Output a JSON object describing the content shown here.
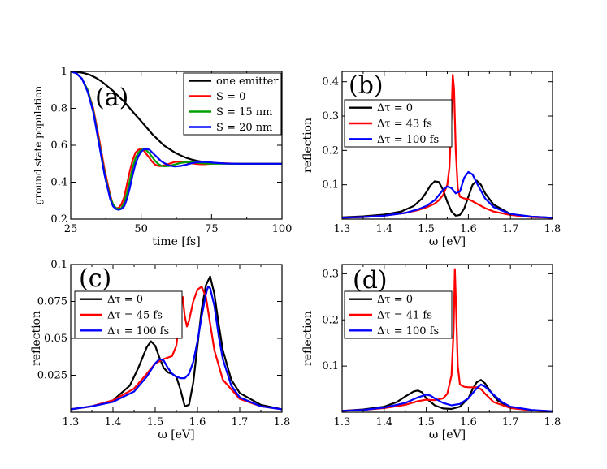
{
  "chart_data": [
    {
      "id": "a",
      "type": "line",
      "panel_label": "(a)",
      "xlabel": "time [fs]",
      "ylabel": "ground state population",
      "xlim": [
        25,
        100
      ],
      "ylim": [
        0.2,
        1.0
      ],
      "xticks": [
        25,
        50,
        75,
        100
      ],
      "xtick_labels": [
        "25",
        "50",
        "75",
        "100"
      ],
      "yticks": [
        0.2,
        0.4,
        0.6,
        0.8,
        1.0
      ],
      "ytick_labels": [
        "0.2",
        "0.4",
        "0.6",
        "0.8",
        "1"
      ],
      "legend_position": "top-right",
      "series": [
        {
          "name": "one emitter",
          "color": "#000000",
          "x": [
            25,
            28,
            30,
            32,
            34,
            36,
            38,
            40,
            42,
            44,
            46,
            48,
            50,
            52,
            54,
            56,
            58,
            60,
            62,
            64,
            66,
            68,
            70,
            72,
            74,
            76,
            78,
            80,
            85,
            90,
            95,
            100
          ],
          "y": [
            1.0,
            0.995,
            0.99,
            0.98,
            0.965,
            0.945,
            0.92,
            0.895,
            0.865,
            0.835,
            0.8,
            0.765,
            0.73,
            0.695,
            0.66,
            0.63,
            0.6,
            0.58,
            0.56,
            0.545,
            0.532,
            0.522,
            0.515,
            0.51,
            0.506,
            0.503,
            0.502,
            0.501,
            0.5,
            0.5,
            0.5,
            0.5
          ]
        },
        {
          "name": "S = 0",
          "color": "#ff0000",
          "x": [
            25,
            27,
            29,
            31,
            33,
            35,
            37,
            39,
            40,
            41,
            42,
            43,
            44,
            45,
            46,
            47,
            48,
            49,
            50,
            51,
            52,
            53,
            54,
            55,
            56,
            57,
            58,
            60,
            62,
            64,
            66,
            68,
            70,
            72,
            74,
            76,
            80,
            85,
            90,
            95,
            100
          ],
          "y": [
            1.0,
            0.99,
            0.96,
            0.9,
            0.8,
            0.64,
            0.47,
            0.33,
            0.28,
            0.26,
            0.26,
            0.28,
            0.32,
            0.39,
            0.46,
            0.52,
            0.56,
            0.575,
            0.58,
            0.57,
            0.55,
            0.53,
            0.51,
            0.495,
            0.488,
            0.487,
            0.49,
            0.5,
            0.51,
            0.512,
            0.508,
            0.502,
            0.498,
            0.497,
            0.499,
            0.501,
            0.502,
            0.5,
            0.5,
            0.5,
            0.5
          ]
        },
        {
          "name": "S = 15 nm",
          "color": "#00a000",
          "x": [
            25,
            27,
            29,
            31,
            33,
            35,
            37,
            39,
            40,
            41,
            42,
            43,
            44,
            45,
            46,
            47,
            48,
            49,
            50,
            51,
            52,
            53,
            54,
            55,
            56,
            57,
            58,
            60,
            62,
            64,
            66,
            68,
            70,
            72,
            74,
            76,
            80,
            85,
            90,
            95,
            100
          ],
          "y": [
            1.0,
            0.99,
            0.96,
            0.9,
            0.79,
            0.62,
            0.45,
            0.32,
            0.28,
            0.26,
            0.255,
            0.26,
            0.29,
            0.34,
            0.41,
            0.48,
            0.53,
            0.56,
            0.575,
            0.578,
            0.57,
            0.555,
            0.535,
            0.515,
            0.5,
            0.49,
            0.486,
            0.488,
            0.496,
            0.504,
            0.508,
            0.508,
            0.505,
            0.502,
            0.5,
            0.5,
            0.5,
            0.5,
            0.5,
            0.5,
            0.5
          ]
        },
        {
          "name": "S = 20 nm",
          "color": "#0000ff",
          "x": [
            25,
            27,
            29,
            31,
            33,
            35,
            37,
            39,
            40,
            41,
            42,
            43,
            44,
            45,
            46,
            47,
            48,
            49,
            50,
            51,
            52,
            53,
            54,
            55,
            56,
            57,
            58,
            60,
            62,
            64,
            66,
            68,
            70,
            72,
            74,
            76,
            80,
            85,
            90,
            95,
            100
          ],
          "y": [
            1.0,
            0.99,
            0.96,
            0.89,
            0.78,
            0.61,
            0.44,
            0.31,
            0.27,
            0.255,
            0.25,
            0.255,
            0.27,
            0.31,
            0.37,
            0.44,
            0.5,
            0.54,
            0.565,
            0.578,
            0.58,
            0.575,
            0.56,
            0.545,
            0.53,
            0.515,
            0.505,
            0.49,
            0.485,
            0.488,
            0.495,
            0.503,
            0.508,
            0.51,
            0.508,
            0.505,
            0.501,
            0.5,
            0.5,
            0.5,
            0.5
          ]
        }
      ]
    },
    {
      "id": "b",
      "type": "line",
      "panel_label": "(b)",
      "xlabel": "ω [eV]",
      "ylabel": "reflection",
      "xlim": [
        1.3,
        1.8
      ],
      "ylim": [
        0.0,
        0.43
      ],
      "xticks": [
        1.3,
        1.4,
        1.5,
        1.6,
        1.7,
        1.8
      ],
      "xtick_labels": [
        "1.3",
        "1.4",
        "1.5",
        "1.6",
        "1.7",
        "1.8"
      ],
      "yticks": [
        0.1,
        0.2,
        0.3,
        0.4
      ],
      "ytick_labels": [
        "0.1",
        "0.2",
        "0.3",
        "0.4"
      ],
      "legend_position": "top-left",
      "series": [
        {
          "name": "Δτ = 0",
          "color": "#000000",
          "x": [
            1.3,
            1.35,
            1.4,
            1.44,
            1.47,
            1.49,
            1.5,
            1.51,
            1.52,
            1.53,
            1.54,
            1.55,
            1.56,
            1.57,
            1.58,
            1.59,
            1.6,
            1.61,
            1.62,
            1.63,
            1.64,
            1.66,
            1.7,
            1.75,
            1.8
          ],
          "y": [
            0.005,
            0.008,
            0.013,
            0.022,
            0.038,
            0.06,
            0.078,
            0.098,
            0.11,
            0.108,
            0.085,
            0.05,
            0.022,
            0.01,
            0.012,
            0.03,
            0.065,
            0.1,
            0.112,
            0.1,
            0.075,
            0.042,
            0.015,
            0.007,
            0.004
          ]
        },
        {
          "name": "Δτ = 43 fs",
          "color": "#ff0000",
          "x": [
            1.3,
            1.35,
            1.4,
            1.45,
            1.48,
            1.5,
            1.52,
            1.53,
            1.54,
            1.55,
            1.555,
            1.56,
            1.563,
            1.566,
            1.57,
            1.575,
            1.58,
            1.59,
            1.6,
            1.61,
            1.62,
            1.64,
            1.66,
            1.7,
            1.75,
            1.8
          ],
          "y": [
            0.004,
            0.006,
            0.01,
            0.018,
            0.026,
            0.034,
            0.045,
            0.055,
            0.07,
            0.1,
            0.15,
            0.3,
            0.42,
            0.38,
            0.2,
            0.09,
            0.065,
            0.06,
            0.058,
            0.052,
            0.045,
            0.032,
            0.022,
            0.012,
            0.006,
            0.004
          ]
        },
        {
          "name": "Δτ = 100 fs",
          "color": "#0000ff",
          "x": [
            1.3,
            1.35,
            1.4,
            1.45,
            1.48,
            1.5,
            1.52,
            1.53,
            1.54,
            1.55,
            1.56,
            1.57,
            1.58,
            1.59,
            1.6,
            1.61,
            1.62,
            1.64,
            1.66,
            1.7,
            1.75,
            1.8
          ],
          "y": [
            0.004,
            0.006,
            0.01,
            0.018,
            0.028,
            0.038,
            0.055,
            0.07,
            0.085,
            0.095,
            0.09,
            0.075,
            0.08,
            0.12,
            0.137,
            0.13,
            0.105,
            0.06,
            0.035,
            0.015,
            0.007,
            0.004
          ]
        }
      ]
    },
    {
      "id": "c",
      "type": "line",
      "panel_label": "(c)",
      "xlabel": "ω [eV]",
      "ylabel": "reflection",
      "xlim": [
        1.3,
        1.8
      ],
      "ylim": [
        0.0,
        0.1
      ],
      "xticks": [
        1.3,
        1.4,
        1.5,
        1.6,
        1.7,
        1.8
      ],
      "xtick_labels": [
        "1.3",
        "1.4",
        "1.5",
        "1.6",
        "1.7",
        "1.8"
      ],
      "yticks": [
        0.025,
        0.05,
        0.075,
        0.1
      ],
      "ytick_labels": [
        "0.025",
        "0.05",
        "0.075",
        "0.1"
      ],
      "legend_position": "top-left",
      "series": [
        {
          "name": "Δτ = 0",
          "color": "#000000",
          "x": [
            1.3,
            1.35,
            1.4,
            1.44,
            1.46,
            1.48,
            1.49,
            1.5,
            1.51,
            1.52,
            1.53,
            1.54,
            1.55,
            1.56,
            1.57,
            1.58,
            1.59,
            1.6,
            1.61,
            1.62,
            1.63,
            1.64,
            1.65,
            1.66,
            1.68,
            1.7,
            1.75,
            1.8
          ],
          "y": [
            0.002,
            0.004,
            0.008,
            0.018,
            0.03,
            0.044,
            0.048,
            0.045,
            0.037,
            0.03,
            0.027,
            0.026,
            0.024,
            0.015,
            0.004,
            0.005,
            0.02,
            0.045,
            0.07,
            0.086,
            0.092,
            0.08,
            0.06,
            0.042,
            0.022,
            0.013,
            0.005,
            0.002
          ]
        },
        {
          "name": "Δτ = 45 fs",
          "color": "#ff0000",
          "x": [
            1.3,
            1.35,
            1.4,
            1.45,
            1.48,
            1.5,
            1.52,
            1.54,
            1.55,
            1.56,
            1.565,
            1.57,
            1.575,
            1.58,
            1.59,
            1.6,
            1.61,
            1.62,
            1.63,
            1.64,
            1.66,
            1.7,
            1.75,
            1.8
          ],
          "y": [
            0.002,
            0.004,
            0.008,
            0.016,
            0.026,
            0.033,
            0.036,
            0.038,
            0.045,
            0.07,
            0.078,
            0.065,
            0.058,
            0.062,
            0.075,
            0.083,
            0.085,
            0.078,
            0.06,
            0.042,
            0.022,
            0.009,
            0.004,
            0.002
          ]
        },
        {
          "name": "Δτ = 100 fs",
          "color": "#0000ff",
          "x": [
            1.3,
            1.35,
            1.4,
            1.45,
            1.48,
            1.5,
            1.51,
            1.52,
            1.53,
            1.54,
            1.55,
            1.56,
            1.57,
            1.58,
            1.59,
            1.6,
            1.61,
            1.62,
            1.625,
            1.63,
            1.64,
            1.65,
            1.66,
            1.68,
            1.7,
            1.75,
            1.8
          ],
          "y": [
            0.002,
            0.004,
            0.007,
            0.014,
            0.024,
            0.033,
            0.036,
            0.035,
            0.03,
            0.026,
            0.024,
            0.023,
            0.023,
            0.026,
            0.034,
            0.048,
            0.065,
            0.08,
            0.085,
            0.084,
            0.072,
            0.052,
            0.036,
            0.018,
            0.01,
            0.004,
            0.002
          ]
        }
      ]
    },
    {
      "id": "d",
      "type": "line",
      "panel_label": "(d)",
      "xlabel": "ω [eV]",
      "ylabel": "reflection",
      "xlim": [
        1.3,
        1.8
      ],
      "ylim": [
        0.0,
        0.32
      ],
      "xticks": [
        1.3,
        1.4,
        1.5,
        1.6,
        1.7,
        1.8
      ],
      "xtick_labels": [
        "1.3",
        "1.4",
        "1.5",
        "1.6",
        "1.7",
        "1.8"
      ],
      "yticks": [
        0.1,
        0.2,
        0.3
      ],
      "ytick_labels": [
        "0.1",
        "0.2",
        "0.3"
      ],
      "legend_position": "top-left",
      "series": [
        {
          "name": "Δτ = 0",
          "color": "#000000",
          "x": [
            1.3,
            1.35,
            1.4,
            1.43,
            1.45,
            1.47,
            1.48,
            1.49,
            1.5,
            1.52,
            1.54,
            1.56,
            1.58,
            1.6,
            1.61,
            1.62,
            1.63,
            1.64,
            1.65,
            1.67,
            1.7,
            1.75,
            1.8
          ],
          "y": [
            0.003,
            0.006,
            0.012,
            0.022,
            0.034,
            0.045,
            0.047,
            0.043,
            0.03,
            0.015,
            0.008,
            0.007,
            0.012,
            0.03,
            0.05,
            0.065,
            0.07,
            0.062,
            0.048,
            0.025,
            0.01,
            0.004,
            0.002
          ]
        },
        {
          "name": "Δτ = 41 fs",
          "color": "#ff0000",
          "x": [
            1.3,
            1.35,
            1.4,
            1.45,
            1.48,
            1.5,
            1.52,
            1.54,
            1.55,
            1.56,
            1.565,
            1.568,
            1.571,
            1.575,
            1.58,
            1.59,
            1.6,
            1.62,
            1.63,
            1.64,
            1.66,
            1.7,
            1.75,
            1.8
          ],
          "y": [
            0.003,
            0.005,
            0.009,
            0.016,
            0.024,
            0.027,
            0.026,
            0.03,
            0.04,
            0.08,
            0.18,
            0.31,
            0.22,
            0.1,
            0.06,
            0.055,
            0.054,
            0.054,
            0.05,
            0.04,
            0.022,
            0.009,
            0.004,
            0.002
          ]
        },
        {
          "name": "Δτ = 100 fs",
          "color": "#0000ff",
          "x": [
            1.3,
            1.35,
            1.4,
            1.45,
            1.48,
            1.5,
            1.51,
            1.52,
            1.54,
            1.56,
            1.58,
            1.6,
            1.62,
            1.63,
            1.64,
            1.66,
            1.68,
            1.7,
            1.75,
            1.8
          ],
          "y": [
            0.003,
            0.005,
            0.01,
            0.02,
            0.032,
            0.038,
            0.036,
            0.03,
            0.02,
            0.015,
            0.018,
            0.03,
            0.052,
            0.06,
            0.055,
            0.038,
            0.022,
            0.012,
            0.005,
            0.002
          ]
        }
      ]
    }
  ]
}
